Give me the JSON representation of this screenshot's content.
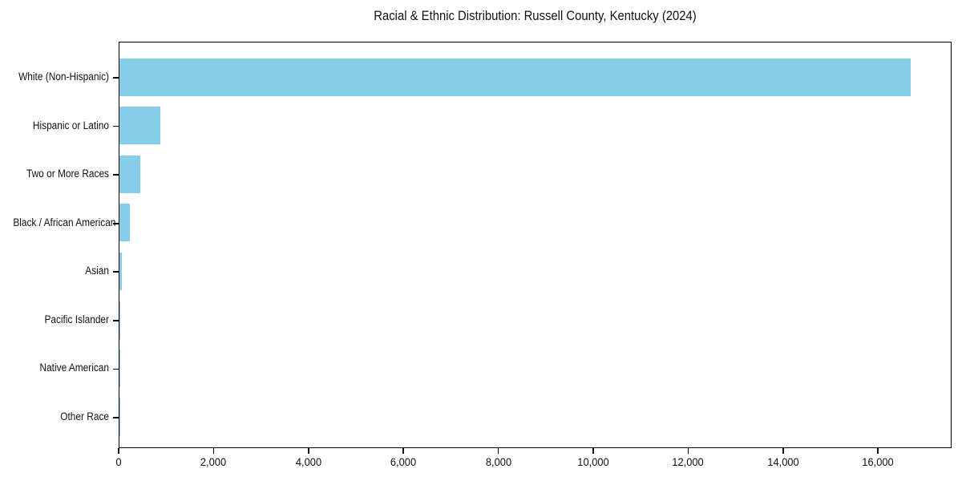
{
  "title": "Racial & Ethnic Distribution: Russell County, Kentucky (2024)",
  "colors": {
    "bar": "#87CEEB",
    "spine": "#000000",
    "text": "#111111",
    "background": "#ffffff"
  },
  "chart_data": {
    "type": "bar",
    "orientation": "horizontal",
    "title": "Racial & Ethnic Distribution: Russell County, Kentucky (2024)",
    "xlabel": "",
    "ylabel": "",
    "categories": [
      "White (Non-Hispanic)",
      "Hispanic or Latino",
      "Two or More Races",
      "Black / African American",
      "Asian",
      "Pacific Islander",
      "Native American",
      "Other Race"
    ],
    "values": [
      16700,
      870,
      440,
      220,
      45,
      15,
      10,
      5
    ],
    "xlim": [
      0,
      17550
    ],
    "xticks": [
      0,
      2000,
      4000,
      6000,
      8000,
      10000,
      12000,
      14000,
      16000
    ],
    "xtick_labels": [
      "0",
      "2,000",
      "4,000",
      "6,000",
      "8,000",
      "10,000",
      "12,000",
      "14,000",
      "16,000"
    ],
    "grid": false,
    "legend": null,
    "bar_color": "#87CEEB"
  },
  "layout_note": "single horizontal bar chart, sorted descending, no gridlines, boxed axes"
}
